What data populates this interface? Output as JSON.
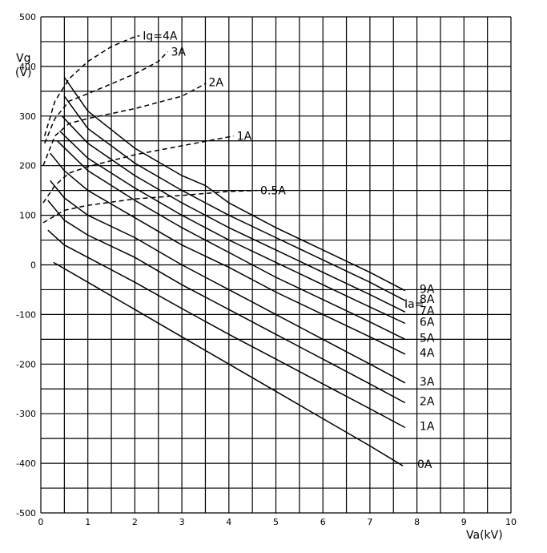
{
  "chart_data": {
    "type": "line",
    "title": "",
    "xlabel": "Va(kV)",
    "ylabel_line1": "Vg",
    "ylabel_line2": "(V)",
    "xlim": [
      0,
      10
    ],
    "ylim": [
      -500,
      500
    ],
    "xticks": [
      0,
      1,
      2,
      3,
      4,
      5,
      6,
      7,
      8,
      9,
      10
    ],
    "yticks": [
      -500,
      -400,
      -300,
      -200,
      -100,
      0,
      100,
      200,
      300,
      400,
      500
    ],
    "grid": true,
    "anode_header": "Ia=",
    "anode_series": [
      {
        "name": "0A",
        "points": [
          [
            0.27,
            5
          ],
          [
            1,
            -35
          ],
          [
            2,
            -90
          ],
          [
            3,
            -145
          ],
          [
            4,
            -200
          ],
          [
            5,
            -255
          ],
          [
            6,
            -310
          ],
          [
            7,
            -365
          ],
          [
            7.7,
            -405
          ]
        ]
      },
      {
        "name": "1A",
        "points": [
          [
            0.15,
            70
          ],
          [
            0.5,
            40
          ],
          [
            1,
            15
          ],
          [
            2,
            -35
          ],
          [
            3,
            -88
          ],
          [
            4,
            -140
          ],
          [
            5,
            -190
          ],
          [
            6,
            -240
          ],
          [
            7,
            -290
          ],
          [
            7.75,
            -328
          ]
        ]
      },
      {
        "name": "2A",
        "points": [
          [
            0.15,
            130
          ],
          [
            0.5,
            90
          ],
          [
            1,
            60
          ],
          [
            2,
            15
          ],
          [
            3,
            -40
          ],
          [
            4,
            -90
          ],
          [
            5,
            -140
          ],
          [
            6,
            -190
          ],
          [
            7,
            -240
          ],
          [
            7.75,
            -278
          ]
        ]
      },
      {
        "name": "3A",
        "points": [
          [
            0.2,
            170
          ],
          [
            0.5,
            135
          ],
          [
            1,
            100
          ],
          [
            2,
            55
          ],
          [
            3,
            0
          ],
          [
            4,
            -50
          ],
          [
            5,
            -100
          ],
          [
            6,
            -150
          ],
          [
            7,
            -200
          ],
          [
            7.75,
            -238
          ]
        ]
      },
      {
        "name": "4A",
        "points": [
          [
            0.2,
            225
          ],
          [
            0.5,
            190
          ],
          [
            1,
            150
          ],
          [
            2,
            95
          ],
          [
            3,
            40
          ],
          [
            4,
            -5
          ],
          [
            5,
            -55
          ],
          [
            6,
            -100
          ],
          [
            7,
            -145
          ],
          [
            7.75,
            -180
          ]
        ]
      },
      {
        "name": "5A",
        "points": [
          [
            0.35,
            250
          ],
          [
            1,
            190
          ],
          [
            2,
            130
          ],
          [
            3,
            75
          ],
          [
            4,
            25
          ],
          [
            5,
            -25
          ],
          [
            6,
            -70
          ],
          [
            7,
            -115
          ],
          [
            7.75,
            -150
          ]
        ]
      },
      {
        "name": "6A",
        "points": [
          [
            0.4,
            270
          ],
          [
            1,
            215
          ],
          [
            2,
            155
          ],
          [
            3,
            100
          ],
          [
            4,
            50
          ],
          [
            5,
            5
          ],
          [
            6,
            -40
          ],
          [
            7,
            -85
          ],
          [
            7.75,
            -118
          ]
        ]
      },
      {
        "name": "7A",
        "points": [
          [
            0.45,
            300
          ],
          [
            1,
            245
          ],
          [
            2,
            180
          ],
          [
            3,
            125
          ],
          [
            4,
            75
          ],
          [
            5,
            30
          ],
          [
            6,
            -15
          ],
          [
            7,
            -60
          ],
          [
            7.75,
            -95
          ]
        ]
      },
      {
        "name": "8A",
        "points": [
          [
            0.5,
            340
          ],
          [
            1,
            275
          ],
          [
            2,
            205
          ],
          [
            3,
            150
          ],
          [
            4,
            100
          ],
          [
            5,
            55
          ],
          [
            6,
            10
          ],
          [
            7,
            -35
          ],
          [
            7.75,
            -72
          ]
        ]
      },
      {
        "name": "9A",
        "points": [
          [
            0.5,
            378
          ],
          [
            1,
            310
          ],
          [
            2,
            235
          ],
          [
            3,
            180
          ],
          [
            3.5,
            160
          ],
          [
            4,
            125
          ],
          [
            5,
            75
          ],
          [
            6,
            30
          ],
          [
            7,
            -15
          ],
          [
            7.75,
            -52
          ]
        ]
      }
    ],
    "grid_series": [
      {
        "name": "Ig=4A",
        "points": [
          [
            0.08,
            260
          ],
          [
            0.3,
            330
          ],
          [
            0.6,
            375
          ],
          [
            1,
            410
          ],
          [
            1.5,
            440
          ],
          [
            2,
            460
          ],
          [
            2.1,
            462
          ]
        ]
      },
      {
        "name": "3A",
        "points": [
          [
            0.08,
            245
          ],
          [
            0.3,
            295
          ],
          [
            0.6,
            330
          ],
          [
            1,
            345
          ],
          [
            1.5,
            365
          ],
          [
            2,
            385
          ],
          [
            2.5,
            410
          ],
          [
            2.7,
            430
          ]
        ]
      },
      {
        "name": "2A",
        "points": [
          [
            0.05,
            200
          ],
          [
            0.3,
            260
          ],
          [
            0.6,
            285
          ],
          [
            1,
            295
          ],
          [
            2,
            315
          ],
          [
            3,
            340
          ],
          [
            3.5,
            365
          ],
          [
            3.5,
            368
          ]
        ]
      },
      {
        "name": "1A",
        "points": [
          [
            0.05,
            125
          ],
          [
            0.3,
            160
          ],
          [
            0.6,
            185
          ],
          [
            1,
            198
          ],
          [
            2,
            222
          ],
          [
            3,
            240
          ],
          [
            4,
            258
          ],
          [
            4.1,
            260
          ]
        ]
      },
      {
        "name": "0.5A",
        "points": [
          [
            0.05,
            85
          ],
          [
            0.5,
            110
          ],
          [
            1,
            120
          ],
          [
            2,
            133
          ],
          [
            3,
            140
          ],
          [
            4,
            148
          ],
          [
            4.6,
            150
          ]
        ]
      }
    ]
  }
}
